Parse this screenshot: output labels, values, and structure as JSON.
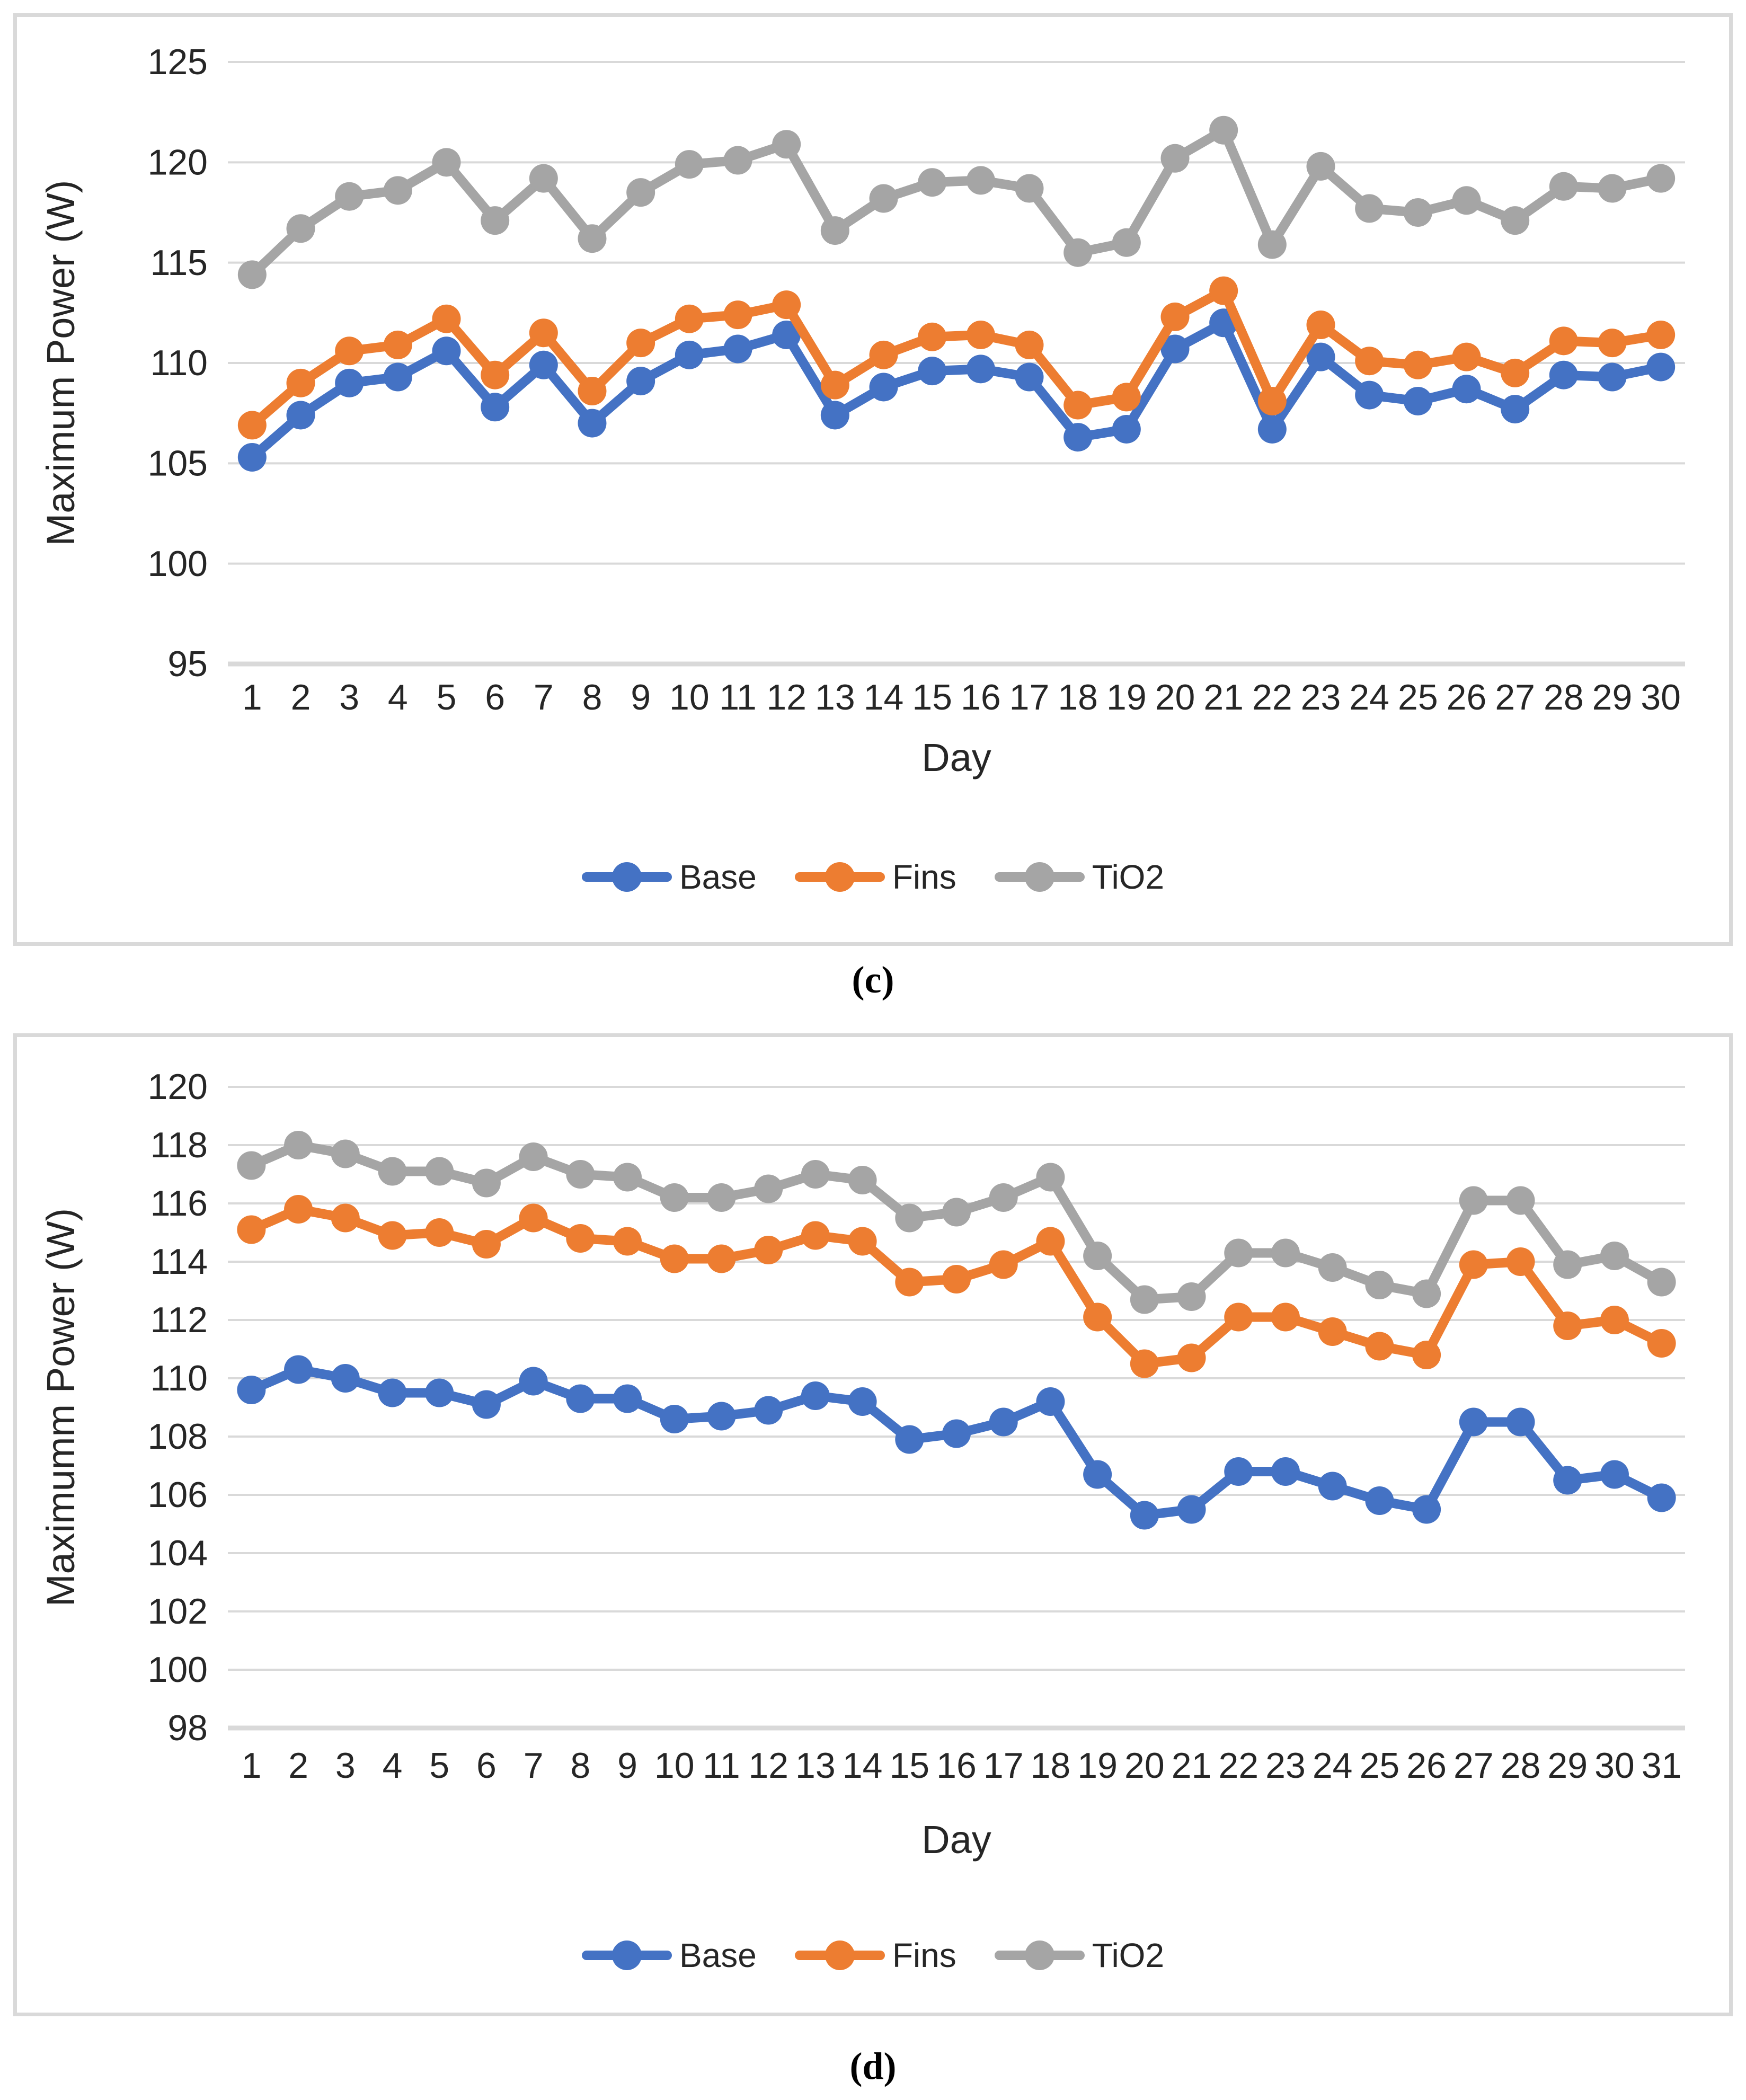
{
  "captions": {
    "c": "(c)",
    "d": "(d)"
  },
  "colors": {
    "base": "#4472C4",
    "fins": "#ED7D31",
    "tio2": "#A5A5A5",
    "gridline": "#D9D9D9",
    "panel_border": "#D9D9D9",
    "text": "#262626"
  },
  "chart_data": [
    {
      "id": "c",
      "type": "line",
      "title": "",
      "xlabel": "Day",
      "ylabel": "Maximum Power (W)",
      "ylim": [
        95,
        125
      ],
      "yticks": [
        95,
        100,
        105,
        110,
        115,
        120,
        125
      ],
      "grid": true,
      "legend_position": "bottom",
      "caption": "(c)",
      "categories": [
        1,
        2,
        3,
        4,
        5,
        6,
        7,
        8,
        9,
        10,
        11,
        12,
        13,
        14,
        15,
        16,
        17,
        18,
        19,
        20,
        21,
        22,
        23,
        24,
        25,
        26,
        27,
        28,
        29,
        30
      ],
      "series": [
        {
          "name": "Base",
          "color_key": "base",
          "values": [
            105.3,
            107.4,
            109.0,
            109.3,
            110.6,
            107.8,
            109.9,
            107.0,
            109.1,
            110.4,
            110.7,
            111.4,
            107.4,
            108.8,
            109.6,
            109.7,
            109.3,
            106.3,
            106.7,
            110.7,
            112.0,
            106.7,
            110.3,
            108.4,
            108.1,
            108.7,
            107.7,
            109.4,
            109.3,
            109.8
          ]
        },
        {
          "name": "Fins",
          "color_key": "fins",
          "values": [
            106.9,
            109.0,
            110.6,
            110.9,
            112.2,
            109.4,
            111.5,
            108.6,
            111.0,
            112.2,
            112.4,
            112.9,
            108.9,
            110.4,
            111.3,
            111.4,
            110.9,
            107.9,
            108.3,
            112.3,
            113.6,
            108.1,
            111.9,
            110.1,
            109.9,
            110.3,
            109.5,
            111.1,
            111.0,
            111.4
          ]
        },
        {
          "name": "TiO2",
          "color_key": "tio2",
          "values": [
            114.4,
            116.7,
            118.3,
            118.6,
            120.0,
            117.1,
            119.2,
            116.2,
            118.5,
            119.9,
            120.1,
            120.9,
            116.6,
            118.2,
            119.0,
            119.1,
            118.7,
            115.5,
            116.0,
            120.2,
            121.6,
            115.9,
            119.8,
            117.7,
            117.5,
            118.1,
            117.1,
            118.8,
            118.7,
            119.2
          ]
        }
      ]
    },
    {
      "id": "d",
      "type": "line",
      "title": "",
      "xlabel": "Day",
      "ylabel": "Maximumm Power (W)",
      "ylim": [
        98,
        120
      ],
      "yticks": [
        98,
        100,
        102,
        104,
        106,
        108,
        110,
        112,
        114,
        116,
        118,
        120
      ],
      "grid": true,
      "legend_position": "bottom",
      "caption": "(d)",
      "categories": [
        1,
        2,
        3,
        4,
        5,
        6,
        7,
        8,
        9,
        10,
        11,
        12,
        13,
        14,
        15,
        16,
        17,
        18,
        19,
        20,
        21,
        22,
        23,
        24,
        25,
        26,
        27,
        28,
        29,
        30,
        31
      ],
      "series": [
        {
          "name": "Base",
          "color_key": "base",
          "values": [
            109.6,
            110.3,
            110.0,
            109.5,
            109.5,
            109.1,
            109.9,
            109.3,
            109.3,
            108.6,
            108.7,
            108.9,
            109.4,
            109.2,
            107.9,
            108.1,
            108.5,
            109.2,
            106.7,
            105.3,
            105.5,
            106.8,
            106.8,
            106.3,
            105.8,
            105.5,
            108.5,
            108.5,
            106.5,
            106.7,
            105.9
          ]
        },
        {
          "name": "Fins",
          "color_key": "fins",
          "values": [
            115.1,
            115.8,
            115.5,
            114.9,
            115.0,
            114.6,
            115.5,
            114.8,
            114.7,
            114.1,
            114.1,
            114.4,
            114.9,
            114.7,
            113.3,
            113.4,
            113.9,
            114.7,
            112.1,
            110.5,
            110.7,
            112.1,
            112.1,
            111.6,
            111.1,
            110.8,
            113.9,
            114.0,
            111.8,
            112.0,
            111.2
          ]
        },
        {
          "name": "TiO2",
          "color_key": "tio2",
          "values": [
            117.3,
            118.0,
            117.7,
            117.1,
            117.1,
            116.7,
            117.6,
            117.0,
            116.9,
            116.2,
            116.2,
            116.5,
            117.0,
            116.8,
            115.5,
            115.7,
            116.2,
            116.9,
            114.2,
            112.7,
            112.8,
            114.3,
            114.3,
            113.8,
            113.2,
            112.9,
            116.1,
            116.1,
            113.9,
            114.2,
            113.3
          ]
        }
      ]
    }
  ]
}
